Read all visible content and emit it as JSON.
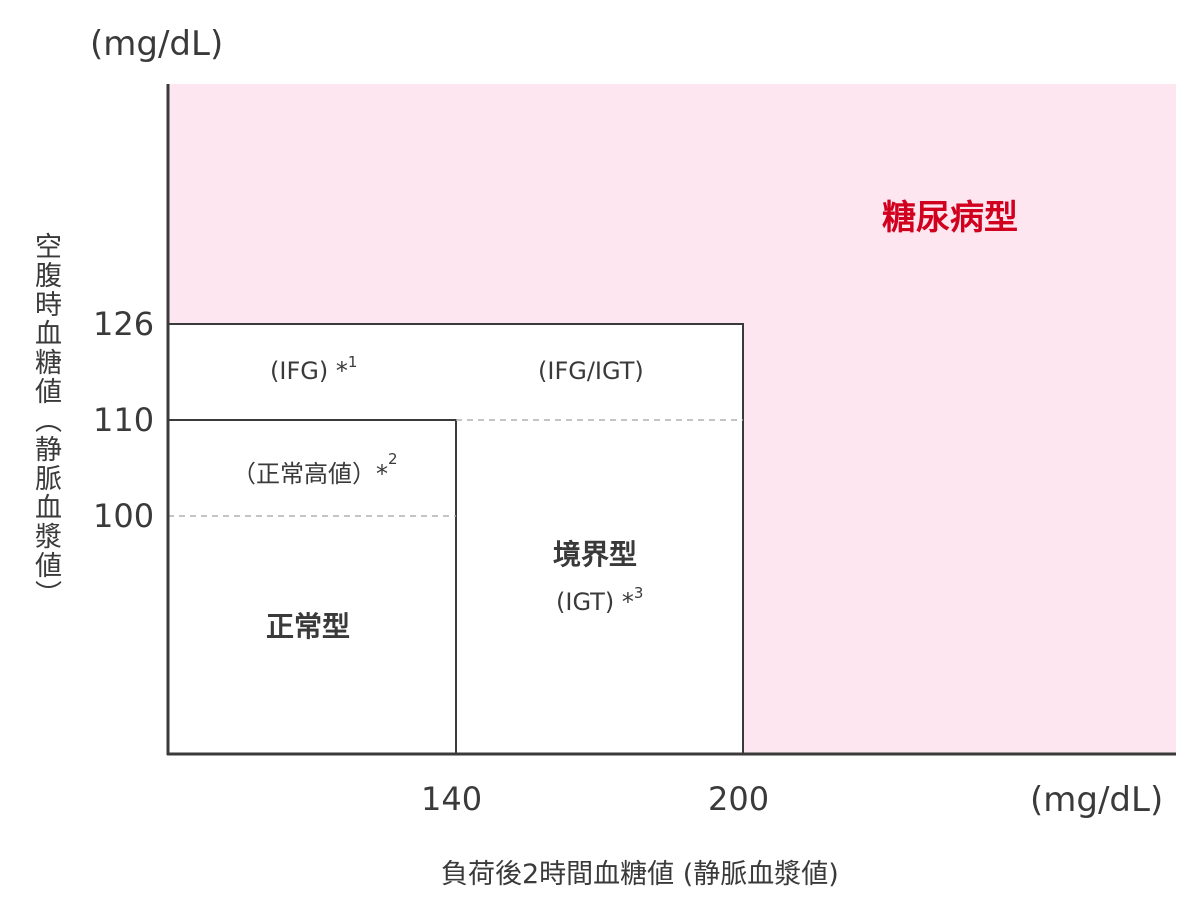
{
  "units": {
    "y_unit": "(mg/dL)",
    "x_unit": "(mg/dL)"
  },
  "axes": {
    "y_title": "空腹時血糖値（静脈血漿値）",
    "x_title": "負荷後2時間血糖値 (静脈血漿値)",
    "y_ticks": [
      "126",
      "110",
      "100"
    ],
    "x_ticks": [
      "140",
      "200"
    ]
  },
  "regions": {
    "diabetes": "糖尿病型",
    "ifg": "(IFG) *",
    "ifg_note": "1",
    "ifg_igt": "(IFG/IGT)",
    "high_normal": "（正常高値）*",
    "high_normal_note": "2",
    "normal": "正常型",
    "borderline": "境界型",
    "igt": "(IGT) *",
    "igt_note": "3"
  },
  "colors": {
    "diabetes_fill": "#fde6ef",
    "diabetes_text": "#d2001f",
    "line": "#3a3a3a",
    "dashed": "#b0b0b0"
  }
}
